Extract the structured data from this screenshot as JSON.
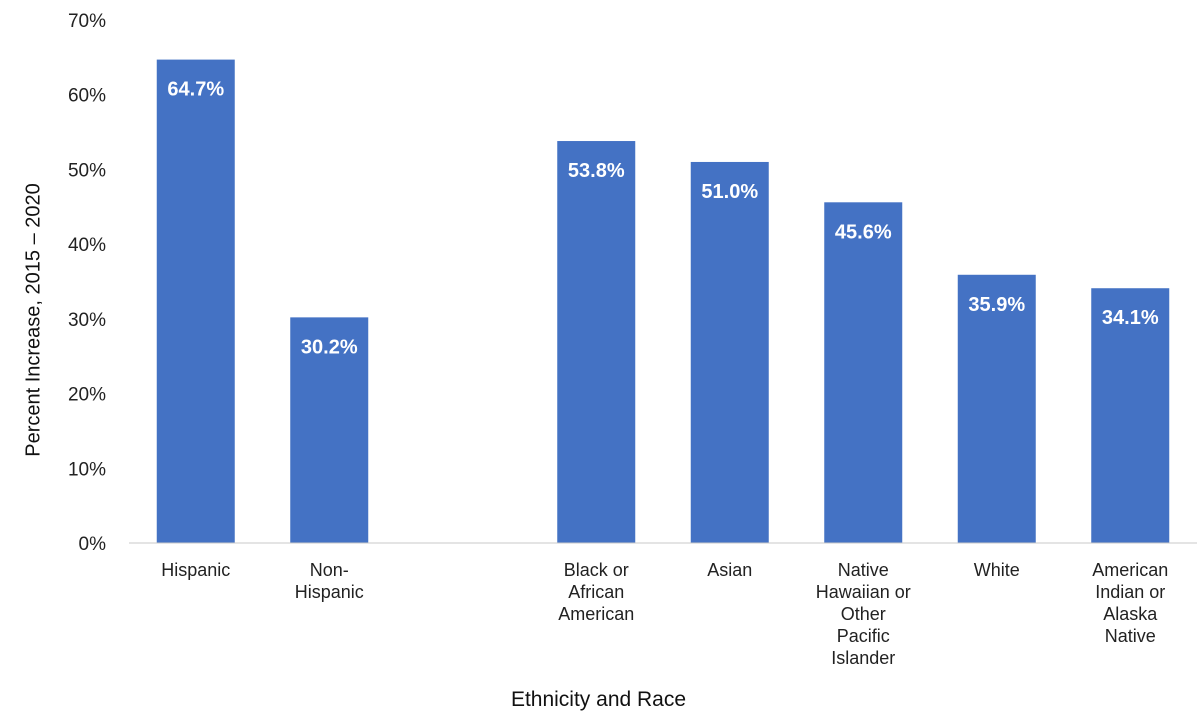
{
  "chart_data": {
    "type": "bar",
    "xlabel": "Ethnicity and Race",
    "ylabel": "Percent Increase,  2015 – 2020",
    "ylim": [
      0,
      70
    ],
    "yticks": [
      "0%",
      "10%",
      "20%",
      "30%",
      "40%",
      "50%",
      "60%",
      "70%"
    ],
    "grid": false,
    "bar_color": "#4472C4",
    "label_color": "#ffffff",
    "categories": [
      [
        "Hispanic"
      ],
      [
        "Non-",
        "Hispanic"
      ],
      [
        ""
      ],
      [
        "Black or",
        "African",
        "American"
      ],
      [
        "Asian"
      ],
      [
        "Native",
        "Hawaiian or",
        "Other",
        "Pacific",
        "Islander"
      ],
      [
        "White"
      ],
      [
        "American",
        "Indian or",
        "Alaska",
        "Native"
      ]
    ],
    "values": [
      64.7,
      30.2,
      null,
      53.8,
      51.0,
      45.6,
      35.9,
      34.1
    ],
    "data_labels": [
      "64.7%",
      "30.2%",
      "",
      "53.8%",
      "51.0%",
      "45.6%",
      "35.9%",
      "34.1%"
    ]
  }
}
